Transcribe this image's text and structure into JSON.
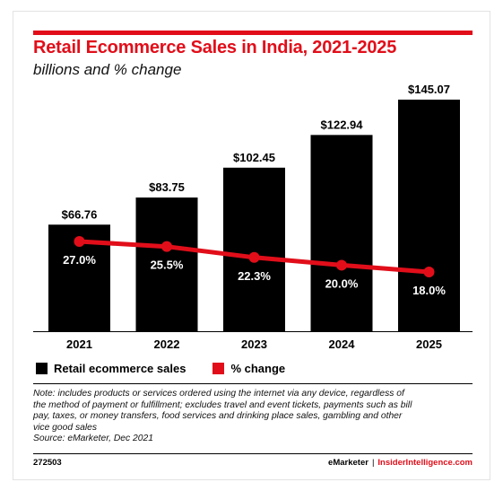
{
  "chart_data": {
    "type": "bar",
    "title": "Retail Ecommerce Sales in India, 2021-2025",
    "subtitle": "billions and % change",
    "categories": [
      "2021",
      "2022",
      "2023",
      "2024",
      "2025"
    ],
    "series": [
      {
        "name": "Retail ecommerce sales",
        "type": "bar",
        "values": [
          66.76,
          83.75,
          102.45,
          122.94,
          145.07
        ],
        "labels": [
          "$66.76",
          "$83.75",
          "$102.45",
          "$122.94",
          "$145.07"
        ]
      },
      {
        "name": "% change",
        "type": "line",
        "values": [
          27.0,
          25.5,
          22.3,
          20.0,
          18.0
        ],
        "labels": [
          "27.0%",
          "25.5%",
          "22.3%",
          "20.0%",
          "18.0%"
        ]
      }
    ],
    "ylim": [
      0,
      150
    ],
    "grid": false,
    "legend_position": "bottom-left",
    "colors": {
      "bars": "#000000",
      "line": "#e10e1a",
      "accent": "#e10e1a"
    }
  },
  "note": [
    "Note: includes products or services ordered using the internet via any device, regardless of",
    "the method of payment or fulfillment; excludes travel and event tickets, payments such as bill",
    "pay, taxes, or money transfers, food services and drinking place sales, gambling and other",
    "vice good sales"
  ],
  "source": "Source: eMarketer, Dec 2021",
  "footer": {
    "chart_id": "272503",
    "brand": "eMarketer",
    "separator": "|",
    "site": "InsiderIntelligence.com"
  }
}
